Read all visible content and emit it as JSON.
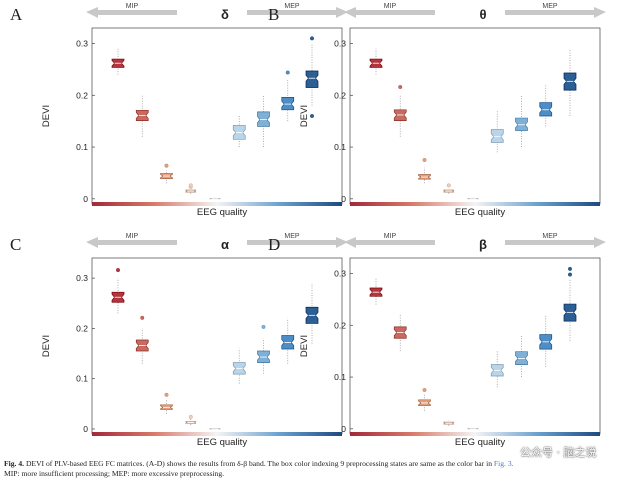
{
  "colors": {
    "states": [
      "#b5343f",
      "#c96a60",
      "#e3a07e",
      "#f2cdb6",
      "#f1f1f1",
      "#b8d5ea",
      "#7fb1d8",
      "#4f8dc6",
      "#2c5f93"
    ],
    "arrow": "#c8c8c8",
    "axis": "#444444"
  },
  "chart_data": [
    {
      "type": "box",
      "panel": "A",
      "title": "δ",
      "xlabel": "EEG quality",
      "ylabel": "DEVI",
      "ylim": [
        -0.01,
        0.33
      ],
      "yticks": [
        0,
        0.1,
        0.2,
        0.3
      ],
      "ytick_labels": [
        "0",
        "0.1",
        "0.2",
        "0.3"
      ],
      "mip_label": "MIP",
      "mep_label": "MEP",
      "boxes": [
        {
          "median": 0.262,
          "q1": 0.254,
          "q3": 0.27,
          "whisker_lo": 0.24,
          "whisker_hi": 0.29,
          "outliers": []
        },
        {
          "median": 0.161,
          "q1": 0.151,
          "q3": 0.171,
          "whisker_lo": 0.12,
          "whisker_hi": 0.2,
          "outliers": []
        },
        {
          "median": 0.044,
          "q1": 0.039,
          "q3": 0.049,
          "whisker_lo": 0.03,
          "whisker_hi": 0.055,
          "outliers": [
            0.064
          ]
        },
        {
          "median": 0.015,
          "q1": 0.013,
          "q3": 0.017,
          "whisker_lo": 0.01,
          "whisker_hi": 0.02,
          "outliers": [
            0.023,
            0.026
          ]
        },
        {
          "median": 0.0,
          "q1": 0.0,
          "q3": 0.001,
          "whisker_lo": 0.0,
          "whisker_hi": 0.002,
          "outliers": []
        },
        {
          "median": 0.128,
          "q1": 0.115,
          "q3": 0.142,
          "whisker_lo": 0.1,
          "whisker_hi": 0.16,
          "outliers": []
        },
        {
          "median": 0.153,
          "q1": 0.14,
          "q3": 0.168,
          "whisker_lo": 0.1,
          "whisker_hi": 0.2,
          "outliers": []
        },
        {
          "median": 0.183,
          "q1": 0.172,
          "q3": 0.196,
          "whisker_lo": 0.15,
          "whisker_hi": 0.23,
          "outliers": [
            0.244
          ]
        },
        {
          "median": 0.233,
          "q1": 0.215,
          "q3": 0.247,
          "whisker_lo": 0.18,
          "whisker_hi": 0.3,
          "outliers": [
            0.31,
            0.16
          ]
        }
      ]
    },
    {
      "type": "box",
      "panel": "B",
      "title": "θ",
      "xlabel": "EEG quality",
      "ylabel": "DEVI",
      "ylim": [
        -0.01,
        0.33
      ],
      "yticks": [
        0,
        0.1,
        0.2,
        0.3
      ],
      "ytick_labels": [
        "0",
        "0.1",
        "0.2",
        "0.3"
      ],
      "mip_label": "MIP",
      "mep_label": "MEP",
      "boxes": [
        {
          "median": 0.262,
          "q1": 0.254,
          "q3": 0.27,
          "whisker_lo": 0.24,
          "whisker_hi": 0.29,
          "outliers": []
        },
        {
          "median": 0.162,
          "q1": 0.151,
          "q3": 0.172,
          "whisker_lo": 0.12,
          "whisker_hi": 0.2,
          "outliers": [
            0.216
          ]
        },
        {
          "median": 0.042,
          "q1": 0.038,
          "q3": 0.047,
          "whisker_lo": 0.03,
          "whisker_hi": 0.06,
          "outliers": [
            0.075
          ]
        },
        {
          "median": 0.015,
          "q1": 0.013,
          "q3": 0.017,
          "whisker_lo": 0.01,
          "whisker_hi": 0.02,
          "outliers": [
            0.026
          ]
        },
        {
          "median": 0.0,
          "q1": 0.0,
          "q3": 0.001,
          "whisker_lo": 0.0,
          "whisker_hi": 0.002,
          "outliers": []
        },
        {
          "median": 0.12,
          "q1": 0.109,
          "q3": 0.134,
          "whisker_lo": 0.09,
          "whisker_hi": 0.17,
          "outliers": []
        },
        {
          "median": 0.143,
          "q1": 0.132,
          "q3": 0.156,
          "whisker_lo": 0.1,
          "whisker_hi": 0.2,
          "outliers": []
        },
        {
          "median": 0.172,
          "q1": 0.16,
          "q3": 0.186,
          "whisker_lo": 0.14,
          "whisker_hi": 0.22,
          "outliers": []
        },
        {
          "median": 0.227,
          "q1": 0.21,
          "q3": 0.243,
          "whisker_lo": 0.16,
          "whisker_hi": 0.29,
          "outliers": []
        }
      ]
    },
    {
      "type": "box",
      "panel": "C",
      "title": "α",
      "xlabel": "EEG quality",
      "ylabel": "DEVI",
      "ylim": [
        -0.01,
        0.34
      ],
      "yticks": [
        0,
        0.1,
        0.2,
        0.3
      ],
      "ytick_labels": [
        "0",
        "0.1",
        "0.2",
        "0.3"
      ],
      "mip_label": "MIP",
      "mep_label": "MEP",
      "boxes": [
        {
          "median": 0.262,
          "q1": 0.252,
          "q3": 0.272,
          "whisker_lo": 0.23,
          "whisker_hi": 0.3,
          "outliers": [
            0.316
          ]
        },
        {
          "median": 0.166,
          "q1": 0.155,
          "q3": 0.177,
          "whisker_lo": 0.13,
          "whisker_hi": 0.2,
          "outliers": [
            0.221
          ]
        },
        {
          "median": 0.043,
          "q1": 0.039,
          "q3": 0.048,
          "whisker_lo": 0.03,
          "whisker_hi": 0.06,
          "outliers": [
            0.068
          ]
        },
        {
          "median": 0.013,
          "q1": 0.011,
          "q3": 0.015,
          "whisker_lo": 0.008,
          "whisker_hi": 0.02,
          "outliers": [
            0.024
          ]
        },
        {
          "median": 0.0,
          "q1": 0.0,
          "q3": 0.001,
          "whisker_lo": 0.0,
          "whisker_hi": 0.002,
          "outliers": []
        },
        {
          "median": 0.12,
          "q1": 0.109,
          "q3": 0.132,
          "whisker_lo": 0.09,
          "whisker_hi": 0.16,
          "outliers": []
        },
        {
          "median": 0.143,
          "q1": 0.132,
          "q3": 0.155,
          "whisker_lo": 0.11,
          "whisker_hi": 0.18,
          "outliers": [
            0.203
          ]
        },
        {
          "median": 0.172,
          "q1": 0.159,
          "q3": 0.186,
          "whisker_lo": 0.13,
          "whisker_hi": 0.22,
          "outliers": []
        },
        {
          "median": 0.226,
          "q1": 0.21,
          "q3": 0.242,
          "whisker_lo": 0.17,
          "whisker_hi": 0.29,
          "outliers": []
        }
      ]
    },
    {
      "type": "box",
      "panel": "D",
      "title": "β",
      "xlabel": "EEG quality",
      "ylabel": "DEVI",
      "ylim": [
        -0.01,
        0.33
      ],
      "yticks": [
        0,
        0.1,
        0.2,
        0.3
      ],
      "ytick_labels": [
        "0",
        "0.1",
        "0.2",
        "0.3"
      ],
      "mip_label": "MIP",
      "mep_label": "MEP",
      "boxes": [
        {
          "median": 0.264,
          "q1": 0.256,
          "q3": 0.272,
          "whisker_lo": 0.24,
          "whisker_hi": 0.29,
          "outliers": []
        },
        {
          "median": 0.186,
          "q1": 0.175,
          "q3": 0.197,
          "whisker_lo": 0.15,
          "whisker_hi": 0.22,
          "outliers": []
        },
        {
          "median": 0.05,
          "q1": 0.045,
          "q3": 0.056,
          "whisker_lo": 0.035,
          "whisker_hi": 0.068,
          "outliers": [
            0.075
          ]
        },
        {
          "median": 0.011,
          "q1": 0.009,
          "q3": 0.013,
          "whisker_lo": 0.006,
          "whisker_hi": 0.016,
          "outliers": []
        },
        {
          "median": 0.0,
          "q1": 0.0,
          "q3": 0.001,
          "whisker_lo": 0.0,
          "whisker_hi": 0.002,
          "outliers": []
        },
        {
          "median": 0.113,
          "q1": 0.102,
          "q3": 0.124,
          "whisker_lo": 0.08,
          "whisker_hi": 0.15,
          "outliers": []
        },
        {
          "median": 0.136,
          "q1": 0.124,
          "q3": 0.149,
          "whisker_lo": 0.1,
          "whisker_hi": 0.18,
          "outliers": []
        },
        {
          "median": 0.168,
          "q1": 0.154,
          "q3": 0.182,
          "whisker_lo": 0.12,
          "whisker_hi": 0.22,
          "outliers": []
        },
        {
          "median": 0.225,
          "q1": 0.208,
          "q3": 0.241,
          "whisker_lo": 0.17,
          "whisker_hi": 0.29,
          "outliers": [
            0.298,
            0.309
          ]
        }
      ]
    }
  ],
  "caption": {
    "label": "Fig. 4.",
    "line1": "DEVI of PLV-based EEG FC matrices. (A-D) shows the results from δ-β band. The box color indexing 9 preprocessing states are same as the color bar in",
    "ref": "Fig. 3.",
    "line2": "MIP: more insufficient processing; MEP: more excessive preprocessing."
  },
  "watermark": "公众号 · 脑之说"
}
